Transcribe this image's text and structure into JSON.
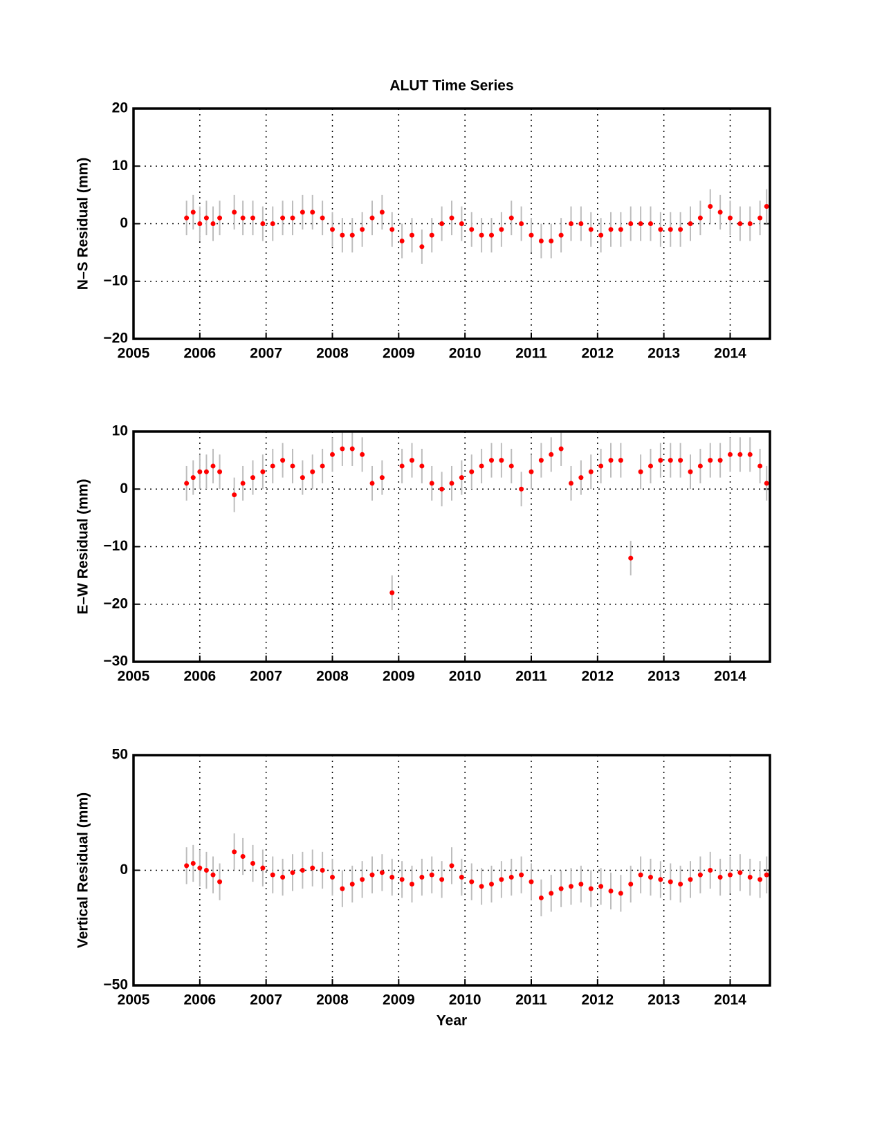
{
  "chart_data": [
    {
      "type": "scatter",
      "title": "ALUT Time Series",
      "ylabel": "N–S Residual (mm)",
      "color": "#ff0000",
      "error_color": "#bdbdbd",
      "grid": true,
      "xlim": [
        2005,
        2014.6
      ],
      "xticks": [
        2005,
        2006,
        2007,
        2008,
        2009,
        2010,
        2011,
        2012,
        2013,
        2014
      ],
      "ylim": [
        -20,
        20
      ],
      "yticks": [
        {
          "value": -20,
          "label": "−20"
        },
        {
          "value": -10,
          "label": "−10"
        },
        0,
        10,
        20
      ],
      "error": 3,
      "x": [
        2005.8,
        2005.9,
        2006.0,
        2006.1,
        2006.2,
        2006.3,
        2006.52,
        2006.65,
        2006.8,
        2006.95,
        2007.1,
        2007.25,
        2007.4,
        2007.55,
        2007.7,
        2007.85,
        2008.0,
        2008.15,
        2008.3,
        2008.45,
        2008.6,
        2008.75,
        2008.9,
        2009.05,
        2009.2,
        2009.35,
        2009.5,
        2009.65,
        2009.8,
        2009.95,
        2010.1,
        2010.25,
        2010.4,
        2010.55,
        2010.7,
        2010.85,
        2011.0,
        2011.15,
        2011.3,
        2011.45,
        2011.6,
        2011.75,
        2011.9,
        2012.05,
        2012.2,
        2012.35,
        2012.5,
        2012.65,
        2012.8,
        2012.95,
        2013.1,
        2013.25,
        2013.4,
        2013.55,
        2013.7,
        2013.85,
        2014.0,
        2014.15,
        2014.3,
        2014.45,
        2014.55
      ],
      "values": [
        1,
        2,
        0,
        1,
        0,
        1,
        2,
        1,
        1,
        0,
        0,
        1,
        1,
        2,
        2,
        1,
        -1,
        -2,
        -2,
        -1,
        1,
        2,
        -1,
        -3,
        -2,
        -4,
        -2,
        0,
        1,
        0,
        -1,
        -2,
        -2,
        -1,
        1,
        0,
        -2,
        -3,
        -3,
        -2,
        0,
        0,
        -1,
        -2,
        -1,
        -1,
        0,
        0,
        0,
        -1,
        -1,
        -1,
        0,
        1,
        3,
        2,
        1,
        0,
        0,
        1,
        3
      ]
    },
    {
      "type": "scatter",
      "ylabel": "E–W Residual (mm)",
      "color": "#ff0000",
      "error_color": "#bdbdbd",
      "grid": true,
      "xlim": [
        2005,
        2014.6
      ],
      "xticks": [
        2005,
        2006,
        2007,
        2008,
        2009,
        2010,
        2011,
        2012,
        2013,
        2014
      ],
      "ylim": [
        -30,
        10
      ],
      "yticks": [
        {
          "value": -30,
          "label": "−30"
        },
        {
          "value": -20,
          "label": "−20"
        },
        {
          "value": -10,
          "label": "−10"
        },
        0,
        10
      ],
      "error": 3,
      "x": [
        2005.8,
        2005.9,
        2006.0,
        2006.1,
        2006.2,
        2006.3,
        2006.52,
        2006.65,
        2006.8,
        2006.95,
        2007.1,
        2007.25,
        2007.4,
        2007.55,
        2007.7,
        2007.85,
        2008.0,
        2008.15,
        2008.3,
        2008.45,
        2008.6,
        2008.75,
        2008.9,
        2009.05,
        2009.2,
        2009.35,
        2009.5,
        2009.65,
        2009.8,
        2009.95,
        2010.1,
        2010.25,
        2010.4,
        2010.55,
        2010.7,
        2010.85,
        2011.0,
        2011.15,
        2011.3,
        2011.45,
        2011.6,
        2011.75,
        2011.9,
        2012.05,
        2012.2,
        2012.35,
        2012.5,
        2012.65,
        2012.8,
        2012.95,
        2013.1,
        2013.25,
        2013.4,
        2013.55,
        2013.7,
        2013.85,
        2014.0,
        2014.15,
        2014.3,
        2014.45,
        2014.55
      ],
      "values": [
        1,
        2,
        3,
        3,
        4,
        3,
        -1,
        1,
        2,
        3,
        4,
        5,
        4,
        2,
        3,
        4,
        6,
        7,
        7,
        6,
        1,
        2,
        -18,
        4,
        5,
        4,
        1,
        0,
        1,
        2,
        3,
        4,
        5,
        5,
        4,
        0,
        3,
        5,
        6,
        7,
        1,
        2,
        3,
        4,
        5,
        5,
        -12,
        3,
        4,
        5,
        5,
        5,
        3,
        4,
        5,
        5,
        6,
        6,
        6,
        4,
        1
      ]
    },
    {
      "type": "scatter",
      "ylabel": "Vertical Residual (mm)",
      "xlabel": "Year",
      "color": "#ff0000",
      "error_color": "#bdbdbd",
      "grid": true,
      "xlim": [
        2005,
        2014.6
      ],
      "xticks": [
        2005,
        2006,
        2007,
        2008,
        2009,
        2010,
        2011,
        2012,
        2013,
        2014
      ],
      "ylim": [
        -50,
        50
      ],
      "yticks": [
        {
          "value": -50,
          "label": "−50"
        },
        0,
        50
      ],
      "error": 8,
      "x": [
        2005.8,
        2005.9,
        2006.0,
        2006.1,
        2006.2,
        2006.3,
        2006.52,
        2006.65,
        2006.8,
        2006.95,
        2007.1,
        2007.25,
        2007.4,
        2007.55,
        2007.7,
        2007.85,
        2008.0,
        2008.15,
        2008.3,
        2008.45,
        2008.6,
        2008.75,
        2008.9,
        2009.05,
        2009.2,
        2009.35,
        2009.5,
        2009.65,
        2009.8,
        2009.95,
        2010.1,
        2010.25,
        2010.4,
        2010.55,
        2010.7,
        2010.85,
        2011.0,
        2011.15,
        2011.3,
        2011.45,
        2011.6,
        2011.75,
        2011.9,
        2012.05,
        2012.2,
        2012.35,
        2012.5,
        2012.65,
        2012.8,
        2012.95,
        2013.1,
        2013.25,
        2013.4,
        2013.55,
        2013.7,
        2013.85,
        2014.0,
        2014.15,
        2014.3,
        2014.45,
        2014.55
      ],
      "values": [
        2,
        3,
        1,
        0,
        -2,
        -5,
        8,
        6,
        3,
        1,
        -2,
        -3,
        -1,
        0,
        1,
        0,
        -3,
        -8,
        -6,
        -4,
        -2,
        -1,
        -3,
        -4,
        -6,
        -3,
        -2,
        -4,
        2,
        -3,
        -5,
        -7,
        -6,
        -4,
        -3,
        -2,
        -5,
        -12,
        -10,
        -8,
        -7,
        -6,
        -8,
        -7,
        -9,
        -10,
        -6,
        -2,
        -3,
        -4,
        -5,
        -6,
        -4,
        -2,
        0,
        -3,
        -2,
        -1,
        -3,
        -4,
        -2
      ]
    }
  ]
}
